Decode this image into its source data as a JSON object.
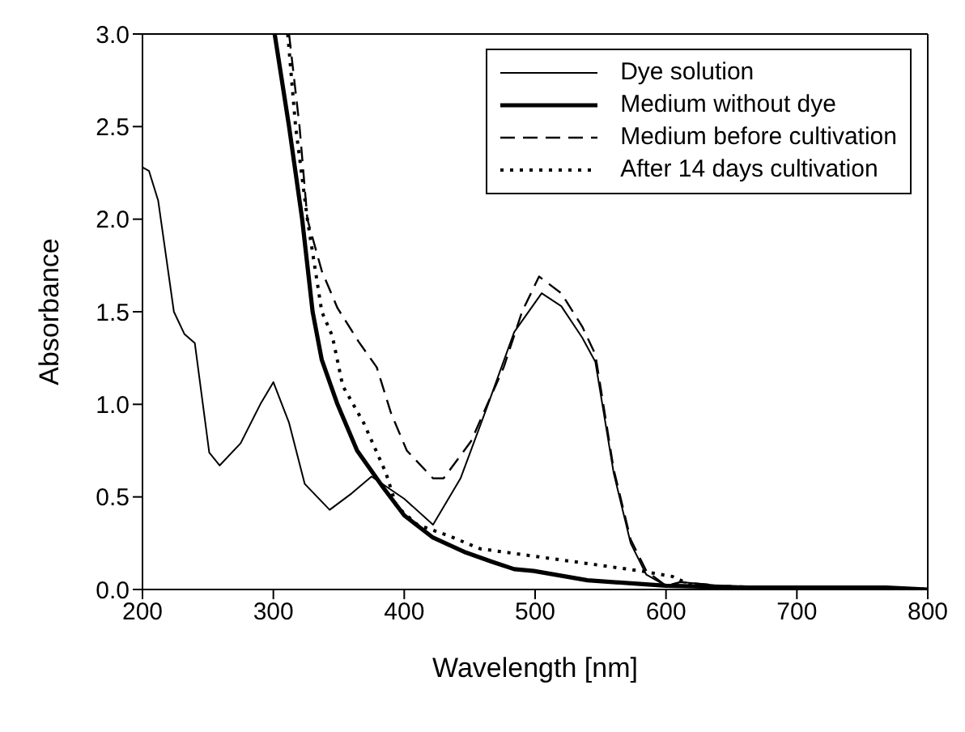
{
  "chart_data": {
    "type": "line",
    "xlabel": "Wavelength [nm]",
    "ylabel": "Absorbance",
    "xlim": [
      200,
      800
    ],
    "ylim": [
      0,
      3
    ],
    "xticks": [
      200,
      300,
      400,
      500,
      600,
      700,
      800
    ],
    "yticks": [
      {
        "value": 0,
        "label": "0.0"
      },
      {
        "value": 0.5,
        "label": "0.5"
      },
      {
        "value": 1,
        "label": "1.0"
      },
      {
        "value": 1.5,
        "label": "1.5"
      },
      {
        "value": 2,
        "label": "2.0"
      },
      {
        "value": 2.5,
        "label": "2.5"
      },
      {
        "value": 3,
        "label": "3.0"
      }
    ],
    "legend": "top right",
    "marker": "none",
    "series": [
      {
        "name": "Dye solution",
        "color": "#000000",
        "line_style": "solid",
        "x": [
          200,
          205,
          212,
          218,
          224,
          232,
          240,
          251,
          259,
          275,
          290,
          300,
          312,
          324,
          343,
          360,
          375,
          400,
          422,
          443,
          463,
          484,
          505,
          520,
          536,
          546,
          560,
          573,
          585,
          600,
          611,
          642,
          703,
          773,
          800
        ],
        "values": [
          2.28,
          2.26,
          2.1,
          1.8,
          1.5,
          1.38,
          1.33,
          0.74,
          0.67,
          0.79,
          1.0,
          1.12,
          0.9,
          0.57,
          0.43,
          0.52,
          0.61,
          0.49,
          0.35,
          0.6,
          0.98,
          1.39,
          1.6,
          1.53,
          1.36,
          1.23,
          0.63,
          0.25,
          0.08,
          0.02,
          0.04,
          0.02,
          0.01,
          0,
          0
        ]
      },
      {
        "name": "Medium without dye",
        "color": "#000000",
        "line_style": "solid",
        "x": [
          301,
          312,
          322,
          330,
          337,
          349,
          364,
          384,
          400,
          422,
          447,
          467,
          484,
          499,
          540,
          600,
          662,
          768,
          800
        ],
        "values": [
          3.0,
          2.5,
          2.0,
          1.5,
          1.24,
          1.0,
          0.75,
          0.55,
          0.4,
          0.28,
          0.2,
          0.15,
          0.11,
          0.1,
          0.05,
          0.02,
          0.01,
          0.01,
          0
        ]
      },
      {
        "name": "Medium before cultivation",
        "color": "#000000",
        "line_style": "dashed",
        "x": [
          312,
          320,
          326,
          337,
          349,
          365,
          379,
          390,
          402,
          422,
          430,
          451,
          476,
          490,
          503,
          520,
          536,
          546,
          560,
          573,
          585,
          600,
          611,
          642,
          703,
          773,
          800
        ],
        "values": [
          3.0,
          2.5,
          2.0,
          1.72,
          1.52,
          1.34,
          1.2,
          0.95,
          0.75,
          0.6,
          0.6,
          0.8,
          1.2,
          1.5,
          1.69,
          1.6,
          1.42,
          1.27,
          0.65,
          0.27,
          0.1,
          0.02,
          0.04,
          0.02,
          0.01,
          0,
          0
        ]
      },
      {
        "name": "After 14 days cultivation",
        "color": "#000000",
        "line_style": "dotted",
        "x": [
          311,
          317,
          326,
          337,
          345,
          353,
          369,
          386,
          394,
          410,
          434,
          458,
          499,
          540,
          581,
          605,
          620,
          662,
          768,
          800
        ],
        "values": [
          3.0,
          2.5,
          2.0,
          1.5,
          1.37,
          1.1,
          0.9,
          0.63,
          0.45,
          0.35,
          0.29,
          0.22,
          0.18,
          0.14,
          0.1,
          0.07,
          0.02,
          0.01,
          0.01,
          0
        ]
      }
    ]
  }
}
